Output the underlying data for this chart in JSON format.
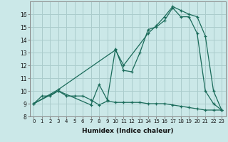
{
  "xlabel": "Humidex (Indice chaleur)",
  "bg_color": "#cbe8e8",
  "grid_color": "#aacccc",
  "line_color": "#1a6b5a",
  "xlim": [
    -0.5,
    23.5
  ],
  "ylim": [
    8,
    17
  ],
  "yticks": [
    8,
    9,
    10,
    11,
    12,
    13,
    14,
    15,
    16
  ],
  "xticks": [
    0,
    1,
    2,
    3,
    4,
    5,
    6,
    7,
    8,
    9,
    10,
    11,
    12,
    13,
    14,
    15,
    16,
    17,
    18,
    19,
    20,
    21,
    22,
    23
  ],
  "series1_x": [
    0,
    1,
    2,
    3,
    4,
    5,
    6,
    7,
    8,
    9,
    10,
    11,
    12,
    13,
    14,
    15,
    16,
    17,
    18,
    19,
    20,
    21,
    22,
    23
  ],
  "series1_y": [
    9.0,
    9.6,
    9.6,
    10.0,
    9.6,
    9.6,
    9.6,
    9.3,
    8.9,
    9.2,
    9.1,
    9.1,
    9.1,
    9.1,
    9.0,
    9.0,
    9.0,
    8.9,
    8.8,
    8.7,
    8.6,
    8.5,
    8.5,
    8.5
  ],
  "series2_x": [
    0,
    3,
    7,
    8,
    9,
    10,
    11,
    12,
    13,
    14,
    15,
    16,
    17,
    18,
    19,
    20,
    21,
    22,
    23
  ],
  "series2_y": [
    9.0,
    10.0,
    8.9,
    10.5,
    9.3,
    13.3,
    11.6,
    11.5,
    13.0,
    14.8,
    15.0,
    15.5,
    16.5,
    15.8,
    15.8,
    14.5,
    10.0,
    9.0,
    8.5
  ],
  "series3_x": [
    0,
    3,
    10,
    11,
    14,
    15,
    16,
    17,
    18,
    19,
    20,
    21,
    22,
    23
  ],
  "series3_y": [
    9.0,
    10.1,
    13.2,
    12.0,
    14.5,
    15.1,
    15.8,
    16.6,
    16.3,
    16.0,
    15.8,
    14.3,
    10.0,
    8.5
  ]
}
